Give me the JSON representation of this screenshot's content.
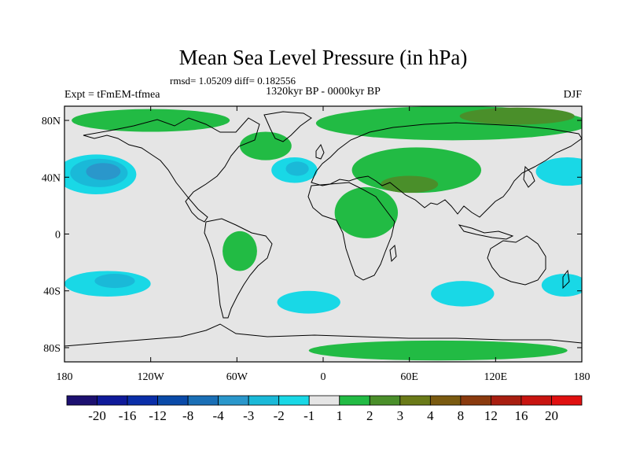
{
  "title": "Mean Sea Level Pressure (in hPa)",
  "stats": "rmsd= 1.05209 diff= 0.182556",
  "period": "1320kyr BP - 0000kyr BP",
  "experiment": "Expt = tFmEM-tfmea",
  "season": "DJF",
  "axes": {
    "x_ticks": [
      "180",
      "120W",
      "60W",
      "0",
      "60E",
      "120E",
      "180"
    ],
    "y_ticks": [
      "80N",
      "40N",
      "0",
      "40S",
      "80S"
    ],
    "x_range_deg": [
      -180,
      180
    ],
    "y_range_deg": [
      -90,
      90
    ]
  },
  "colorbar": {
    "labels": [
      "-20",
      "-16",
      "-12",
      "-8",
      "-4",
      "-3",
      "-2",
      "-1",
      "1",
      "2",
      "3",
      "4",
      "8",
      "12",
      "16",
      "20"
    ],
    "colors": [
      "#1c1070",
      "#0f1a9a",
      "#0a2ea8",
      "#0a4aa8",
      "#1a6fb6",
      "#2a97cb",
      "#1ab9d8",
      "#19d8e6",
      "#e5e5e5",
      "#22bb44",
      "#4a8f2a",
      "#6a7a18",
      "#7a5a10",
      "#8a3a0e",
      "#a81e10",
      "#c81410",
      "#e01010"
    ]
  },
  "map_regions": [
    {
      "name": "north-pacific-low-outer",
      "category": "-1",
      "color": "#19d8e6",
      "lon": -158,
      "lat": 42,
      "rlon": 28,
      "rlat": 14
    },
    {
      "name": "north-pacific-low-mid",
      "category": "-2",
      "color": "#1ab9d8",
      "lon": -156,
      "lat": 43,
      "rlon": 20,
      "rlat": 10
    },
    {
      "name": "north-pacific-low-core",
      "category": "-3",
      "color": "#2a97cb",
      "lon": -153,
      "lat": 44,
      "rlon": 12,
      "rlat": 6
    },
    {
      "name": "north-atlantic-low-outer",
      "category": "-1",
      "color": "#19d8e6",
      "lon": -20,
      "lat": 45,
      "rlon": 16,
      "rlat": 9
    },
    {
      "name": "north-atlantic-low-core",
      "category": "-2",
      "color": "#1ab9d8",
      "lon": -18,
      "lat": 46,
      "rlon": 8,
      "rlat": 5
    },
    {
      "name": "east-asia-pacific-low",
      "category": "-1",
      "color": "#19d8e6",
      "lon": 170,
      "lat": 44,
      "rlon": 22,
      "rlat": 10
    },
    {
      "name": "south-pacific-low-outer",
      "category": "-1",
      "color": "#19d8e6",
      "lon": -150,
      "lat": -35,
      "rlon": 30,
      "rlat": 9
    },
    {
      "name": "south-pacific-low-core",
      "category": "-2",
      "color": "#1ab9d8",
      "lon": -145,
      "lat": -33,
      "rlon": 14,
      "rlat": 5
    },
    {
      "name": "south-atlantic-low",
      "category": "-1",
      "color": "#19d8e6",
      "lon": -10,
      "lat": -48,
      "rlon": 22,
      "rlat": 8
    },
    {
      "name": "south-indian-low",
      "category": "-1",
      "color": "#19d8e6",
      "lon": 97,
      "lat": -42,
      "rlon": 22,
      "rlat": 9
    },
    {
      "name": "south-pacific-low-east",
      "category": "-1",
      "color": "#19d8e6",
      "lon": 168,
      "lat": -36,
      "rlon": 16,
      "rlat": 8
    },
    {
      "name": "arctic-ridge-america",
      "category": "2",
      "color": "#22bb44",
      "lon": -120,
      "lat": 80,
      "rlon": 55,
      "rlat": 8
    },
    {
      "name": "arctic-ridge-siberia",
      "category": "2",
      "color": "#22bb44",
      "lon": 90,
      "lat": 78,
      "rlon": 95,
      "rlat": 12
    },
    {
      "name": "arctic-ridge-siberia-core",
      "category": "3",
      "color": "#4a8f2a",
      "lon": 135,
      "lat": 83,
      "rlon": 40,
      "rlat": 6
    },
    {
      "name": "eurasia-high",
      "category": "2",
      "color": "#22bb44",
      "lon": 65,
      "lat": 45,
      "rlon": 45,
      "rlat": 16
    },
    {
      "name": "north-africa-high",
      "category": "2",
      "color": "#22bb44",
      "lon": 30,
      "lat": 15,
      "rlon": 22,
      "rlat": 18
    },
    {
      "name": "south-america-high",
      "category": "2",
      "color": "#22bb44",
      "lon": -58,
      "lat": -12,
      "rlon": 12,
      "rlat": 14
    },
    {
      "name": "central-asia-high",
      "category": "3",
      "color": "#4a8f2a",
      "lon": 60,
      "lat": 35,
      "rlon": 20,
      "rlat": 6
    },
    {
      "name": "antarctic-high",
      "category": "2",
      "color": "#22bb44",
      "lon": 80,
      "lat": -82,
      "rlon": 90,
      "rlat": 7
    },
    {
      "name": "greenland-high",
      "category": "2",
      "color": "#22bb44",
      "lon": -40,
      "lat": 62,
      "rlon": 18,
      "rlat": 10
    }
  ]
}
